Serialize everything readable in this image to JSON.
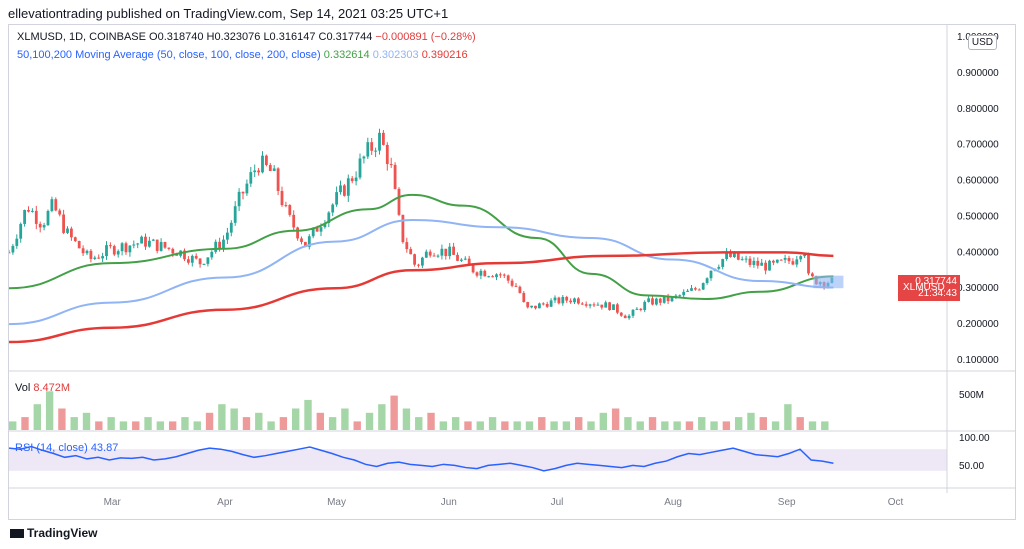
{
  "header": {
    "published": "ellevationtrading published on TradingView.com, Sep 14, 2021 03:25 UTC+1"
  },
  "legend": {
    "symbol": "XLMUSD, 1D, COINBASE",
    "open": "O0.318740",
    "high": "H0.323076",
    "low": "L0.316147",
    "close": "C0.317744",
    "change": "−0.000891 (−0.28%)",
    "ma_label": "50,100,200 Moving Average (50, close, 100, close, 200, close)",
    "ma50": "0.332614",
    "ma100": "0.302303",
    "ma200": "0.390216"
  },
  "currency": "USD",
  "price_tag": {
    "symbol": "XLMUSD",
    "price": "0.317744",
    "countdown": "21:34:43"
  },
  "volume": {
    "label": "Vol",
    "value": "8.472M",
    "axis_label": "500M"
  },
  "rsi": {
    "label": "RSI (14, close)",
    "value": "43.87",
    "axis_labels": [
      "100.00",
      "50.00"
    ]
  },
  "footer": {
    "brand": "TradingView"
  },
  "colors": {
    "up": "#26a69a",
    "down": "#ef5350",
    "ma50": "#43a047",
    "ma100": "#90b4f5",
    "ma200": "#e53935",
    "rsi": "#2962ff"
  },
  "chart_data": {
    "type": "candlestick",
    "y_ticks": [
      "1.000000",
      "0.900000",
      "0.800000",
      "0.700000",
      "0.600000",
      "0.500000",
      "0.400000",
      "0.300000",
      "0.200000",
      "0.100000"
    ],
    "x_ticks": [
      "Mar",
      "Apr",
      "May",
      "Jun",
      "Jul",
      "Aug",
      "Sep",
      "Oct"
    ],
    "ylim": [
      0.1,
      1.0
    ],
    "close_series": [
      {
        "date": "2021-02-01",
        "value": 0.4
      },
      {
        "date": "2021-02-06",
        "value": 0.53
      },
      {
        "date": "2021-02-10",
        "value": 0.48
      },
      {
        "date": "2021-02-13",
        "value": 0.53
      },
      {
        "date": "2021-02-17",
        "value": 0.45
      },
      {
        "date": "2021-02-23",
        "value": 0.38
      },
      {
        "date": "2021-03-01",
        "value": 0.41
      },
      {
        "date": "2021-03-10",
        "value": 0.43
      },
      {
        "date": "2021-03-20",
        "value": 0.4
      },
      {
        "date": "2021-03-25",
        "value": 0.37
      },
      {
        "date": "2021-04-01",
        "value": 0.44
      },
      {
        "date": "2021-04-05",
        "value": 0.55
      },
      {
        "date": "2021-04-10",
        "value": 0.65
      },
      {
        "date": "2021-04-14",
        "value": 0.62
      },
      {
        "date": "2021-04-18",
        "value": 0.5
      },
      {
        "date": "2021-04-23",
        "value": 0.42
      },
      {
        "date": "2021-04-28",
        "value": 0.5
      },
      {
        "date": "2021-05-05",
        "value": 0.6
      },
      {
        "date": "2021-05-10",
        "value": 0.68
      },
      {
        "date": "2021-05-13",
        "value": 0.72
      },
      {
        "date": "2021-05-16",
        "value": 0.65
      },
      {
        "date": "2021-05-19",
        "value": 0.45
      },
      {
        "date": "2021-05-23",
        "value": 0.36
      },
      {
        "date": "2021-05-27",
        "value": 0.41
      },
      {
        "date": "2021-06-01",
        "value": 0.4
      },
      {
        "date": "2021-06-08",
        "value": 0.35
      },
      {
        "date": "2021-06-15",
        "value": 0.34
      },
      {
        "date": "2021-06-20",
        "value": 0.3
      },
      {
        "date": "2021-06-22",
        "value": 0.24
      },
      {
        "date": "2021-06-28",
        "value": 0.26
      },
      {
        "date": "2021-07-05",
        "value": 0.27
      },
      {
        "date": "2021-07-15",
        "value": 0.25
      },
      {
        "date": "2021-07-20",
        "value": 0.22
      },
      {
        "date": "2021-07-25",
        "value": 0.26
      },
      {
        "date": "2021-08-01",
        "value": 0.27
      },
      {
        "date": "2021-08-08",
        "value": 0.3
      },
      {
        "date": "2021-08-12",
        "value": 0.36
      },
      {
        "date": "2021-08-16",
        "value": 0.39
      },
      {
        "date": "2021-08-22",
        "value": 0.37
      },
      {
        "date": "2021-08-28",
        "value": 0.36
      },
      {
        "date": "2021-09-03",
        "value": 0.38
      },
      {
        "date": "2021-09-06",
        "value": 0.42
      },
      {
        "date": "2021-09-07",
        "value": 0.33
      },
      {
        "date": "2021-09-10",
        "value": 0.32
      },
      {
        "date": "2021-09-14",
        "value": 0.318
      }
    ],
    "ma_series": [
      {
        "name": "MA50",
        "points": [
          [
            "2021-02-01",
            0.3
          ],
          [
            "2021-03-01",
            0.37
          ],
          [
            "2021-04-01",
            0.41
          ],
          [
            "2021-04-20",
            0.46
          ],
          [
            "2021-05-10",
            0.52
          ],
          [
            "2021-05-22",
            0.56
          ],
          [
            "2021-06-05",
            0.53
          ],
          [
            "2021-06-25",
            0.44
          ],
          [
            "2021-07-10",
            0.34
          ],
          [
            "2021-07-25",
            0.28
          ],
          [
            "2021-08-10",
            0.27
          ],
          [
            "2021-08-25",
            0.29
          ],
          [
            "2021-09-14",
            0.333
          ]
        ]
      },
      {
        "name": "MA100",
        "points": [
          [
            "2021-02-01",
            0.2
          ],
          [
            "2021-03-01",
            0.26
          ],
          [
            "2021-04-01",
            0.33
          ],
          [
            "2021-05-01",
            0.43
          ],
          [
            "2021-05-22",
            0.49
          ],
          [
            "2021-06-15",
            0.47
          ],
          [
            "2021-07-10",
            0.44
          ],
          [
            "2021-08-01",
            0.38
          ],
          [
            "2021-08-25",
            0.32
          ],
          [
            "2021-09-14",
            0.302
          ]
        ]
      },
      {
        "name": "MA200",
        "points": [
          [
            "2021-02-01",
            0.15
          ],
          [
            "2021-03-01",
            0.19
          ],
          [
            "2021-04-01",
            0.24
          ],
          [
            "2021-05-01",
            0.3
          ],
          [
            "2021-05-22",
            0.35
          ],
          [
            "2021-06-15",
            0.37
          ],
          [
            "2021-07-15",
            0.39
          ],
          [
            "2021-08-15",
            0.4
          ],
          [
            "2021-09-01",
            0.4
          ],
          [
            "2021-09-14",
            0.39
          ]
        ]
      }
    ],
    "volume_relative": [
      0.2,
      0.3,
      0.6,
      0.9,
      0.5,
      0.3,
      0.4,
      0.2,
      0.3,
      0.2,
      0.2,
      0.3,
      0.2,
      0.2,
      0.3,
      0.2,
      0.4,
      0.6,
      0.5,
      0.3,
      0.4,
      0.2,
      0.3,
      0.5,
      0.7,
      0.4,
      0.3,
      0.5,
      0.2,
      0.4,
      0.6,
      0.8,
      0.5,
      0.3,
      0.4,
      0.2,
      0.3,
      0.2,
      0.2,
      0.3,
      0.2,
      0.2,
      0.2,
      0.3,
      0.2,
      0.2,
      0.3,
      0.2,
      0.4,
      0.5,
      0.3,
      0.2,
      0.3,
      0.2,
      0.2,
      0.2,
      0.3,
      0.2,
      0.2,
      0.3,
      0.4,
      0.3,
      0.2,
      0.6,
      0.3,
      0.2,
      0.2
    ],
    "rsi_values": [
      72,
      70,
      75,
      68,
      62,
      55,
      58,
      52,
      55,
      50,
      54,
      53,
      55,
      50,
      52,
      56,
      62,
      68,
      72,
      70,
      66,
      60,
      55,
      58,
      62,
      66,
      70,
      74,
      68,
      62,
      55,
      50,
      42,
      38,
      44,
      46,
      42,
      40,
      38,
      42,
      40,
      36,
      34,
      40,
      42,
      44,
      40,
      36,
      30,
      34,
      40,
      44,
      42,
      40,
      38,
      36,
      40,
      38,
      44,
      48,
      56,
      62,
      60,
      64,
      68,
      72,
      66,
      60,
      58,
      56,
      62,
      70,
      50,
      48,
      44
    ]
  }
}
